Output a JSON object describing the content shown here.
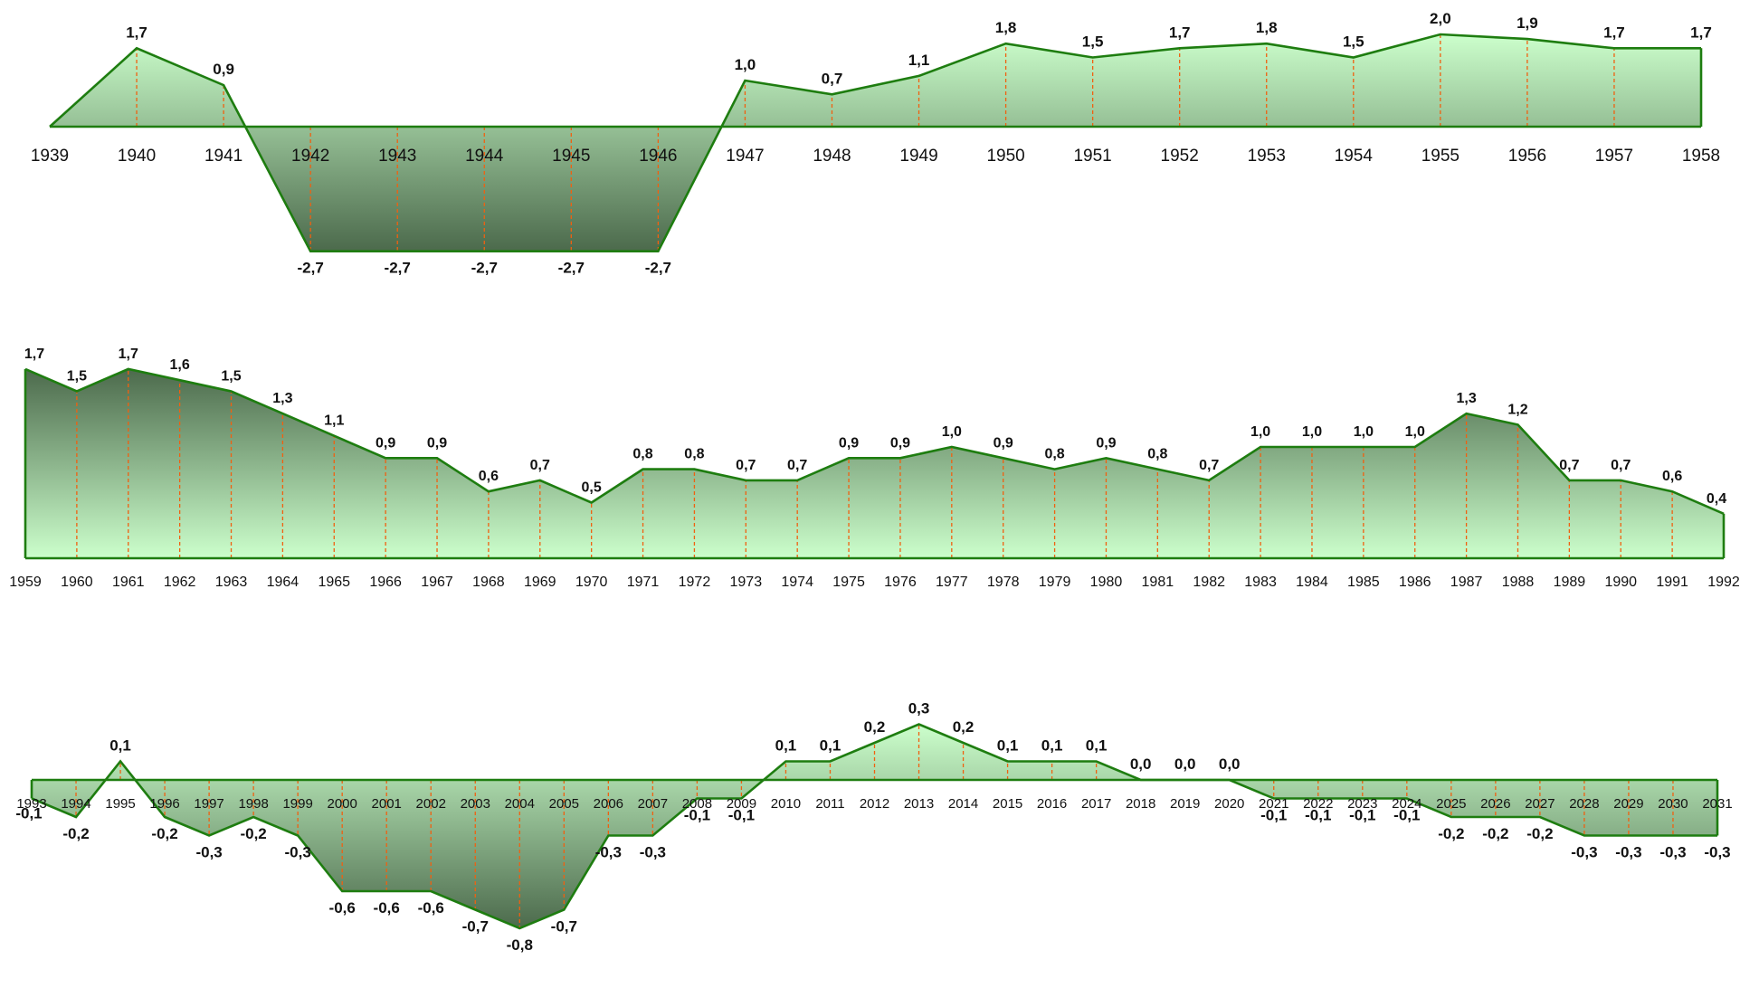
{
  "colors": {
    "line": "#1e7d10",
    "drop": "#f06010",
    "fill_light": "#ccffcc",
    "fill_dark": "#4c6a4c"
  },
  "chart_data": [
    {
      "type": "area",
      "panel": "1939-1958",
      "title": "",
      "xlabel": "",
      "ylabel": "",
      "grid": false,
      "legend": "none",
      "ylim": [
        -2.7,
        2.0
      ],
      "categories": [
        "1939",
        "1940",
        "1941",
        "1942",
        "1943",
        "1944",
        "1945",
        "1946",
        "1947",
        "1948",
        "1949",
        "1950",
        "1951",
        "1952",
        "1953",
        "1954",
        "1955",
        "1956",
        "1957",
        "1958"
      ],
      "values": [
        0.0,
        1.7,
        0.9,
        -2.7,
        -2.7,
        -2.7,
        -2.7,
        -2.7,
        1.0,
        0.7,
        1.1,
        1.8,
        1.5,
        1.7,
        1.8,
        1.5,
        2.0,
        1.9,
        1.7,
        1.7
      ],
      "labels": [
        "",
        "1,7",
        "0,9",
        "-2,7",
        "-2,7",
        "-2,7",
        "-2,7",
        "-2,7",
        "1,0",
        "0,7",
        "1,1",
        "1,8",
        "1,5",
        "1,7",
        "1,8",
        "1,5",
        "2,0",
        "1,9",
        "1,7",
        "1,7"
      ]
    },
    {
      "type": "area",
      "panel": "1959-1992",
      "title": "",
      "xlabel": "",
      "ylabel": "",
      "grid": false,
      "legend": "none",
      "ylim": [
        0,
        1.7
      ],
      "categories": [
        "1959",
        "1960",
        "1961",
        "1962",
        "1963",
        "1964",
        "1965",
        "1966",
        "1967",
        "1968",
        "1969",
        "1970",
        "1971",
        "1972",
        "1973",
        "1974",
        "1975",
        "1976",
        "1977",
        "1978",
        "1979",
        "1980",
        "1981",
        "1982",
        "1983",
        "1984",
        "1985",
        "1986",
        "1987",
        "1988",
        "1989",
        "1990",
        "1991",
        "1992"
      ],
      "values": [
        1.7,
        1.5,
        1.7,
        1.6,
        1.5,
        1.3,
        1.1,
        0.9,
        0.9,
        0.6,
        0.7,
        0.5,
        0.8,
        0.8,
        0.7,
        0.7,
        0.9,
        0.9,
        1.0,
        0.9,
        0.8,
        0.9,
        0.8,
        0.7,
        1.0,
        1.0,
        1.0,
        1.0,
        1.3,
        1.2,
        0.7,
        0.7,
        0.6,
        0.4
      ],
      "labels": [
        "1,7",
        "1,5",
        "1,7",
        "1,6",
        "1,5",
        "1,3",
        "1,1",
        "0,9",
        "0,9",
        "0,6",
        "0,7",
        "0,5",
        "0,8",
        "0,8",
        "0,7",
        "0,7",
        "0,9",
        "0,9",
        "1,0",
        "0,9",
        "0,8",
        "0,9",
        "0,8",
        "0,7",
        "1,0",
        "1,0",
        "1,0",
        "1,0",
        "1,3",
        "1,2",
        "0,7",
        "0,7",
        "0,6",
        "0,4"
      ]
    },
    {
      "type": "area",
      "panel": "1993-2031",
      "title": "",
      "xlabel": "",
      "ylabel": "",
      "grid": false,
      "legend": "none",
      "ylim": [
        -0.8,
        0.3
      ],
      "categories": [
        "1993",
        "1994",
        "1995",
        "1996",
        "1997",
        "1998",
        "1999",
        "2000",
        "2001",
        "2002",
        "2003",
        "2004",
        "2005",
        "2006",
        "2007",
        "2008",
        "2009",
        "2010",
        "2011",
        "2012",
        "2013",
        "2014",
        "2015",
        "2016",
        "2017",
        "2018",
        "2019",
        "2020",
        "2021",
        "2022",
        "2023",
        "2024",
        "2025",
        "2026",
        "2027",
        "2028",
        "2029",
        "2030",
        "2031"
      ],
      "values": [
        -0.1,
        -0.2,
        0.1,
        -0.2,
        -0.3,
        -0.2,
        -0.3,
        -0.6,
        -0.6,
        -0.6,
        -0.7,
        -0.8,
        -0.7,
        -0.3,
        -0.3,
        -0.1,
        -0.1,
        0.1,
        0.1,
        0.2,
        0.3,
        0.2,
        0.1,
        0.1,
        0.1,
        0.0,
        0.0,
        0.0,
        -0.1,
        -0.1,
        -0.1,
        -0.1,
        -0.2,
        -0.2,
        -0.2,
        -0.3,
        -0.3,
        -0.3,
        -0.3
      ],
      "labels": [
        "-0,1",
        "-0,2",
        "0,1",
        "-0,2",
        "-0,3",
        "-0,2",
        "-0,3",
        "-0,6",
        "-0,6",
        "-0,6",
        "-0,7",
        "-0,8",
        "-0,7",
        "-0,3",
        "-0,3",
        "-0,1",
        "-0,1",
        "0,1",
        "0,1",
        "0,2",
        "0,3",
        "0,2",
        "0,1",
        "0,1",
        "0,1",
        "0,0",
        "0,0",
        "0,0",
        "-0,1",
        "-0,1",
        "-0,1",
        "-0,1",
        "-0,2",
        "-0,2",
        "-0,2",
        "-0,3",
        "-0,3",
        "-0,3",
        "-0,3"
      ]
    }
  ]
}
